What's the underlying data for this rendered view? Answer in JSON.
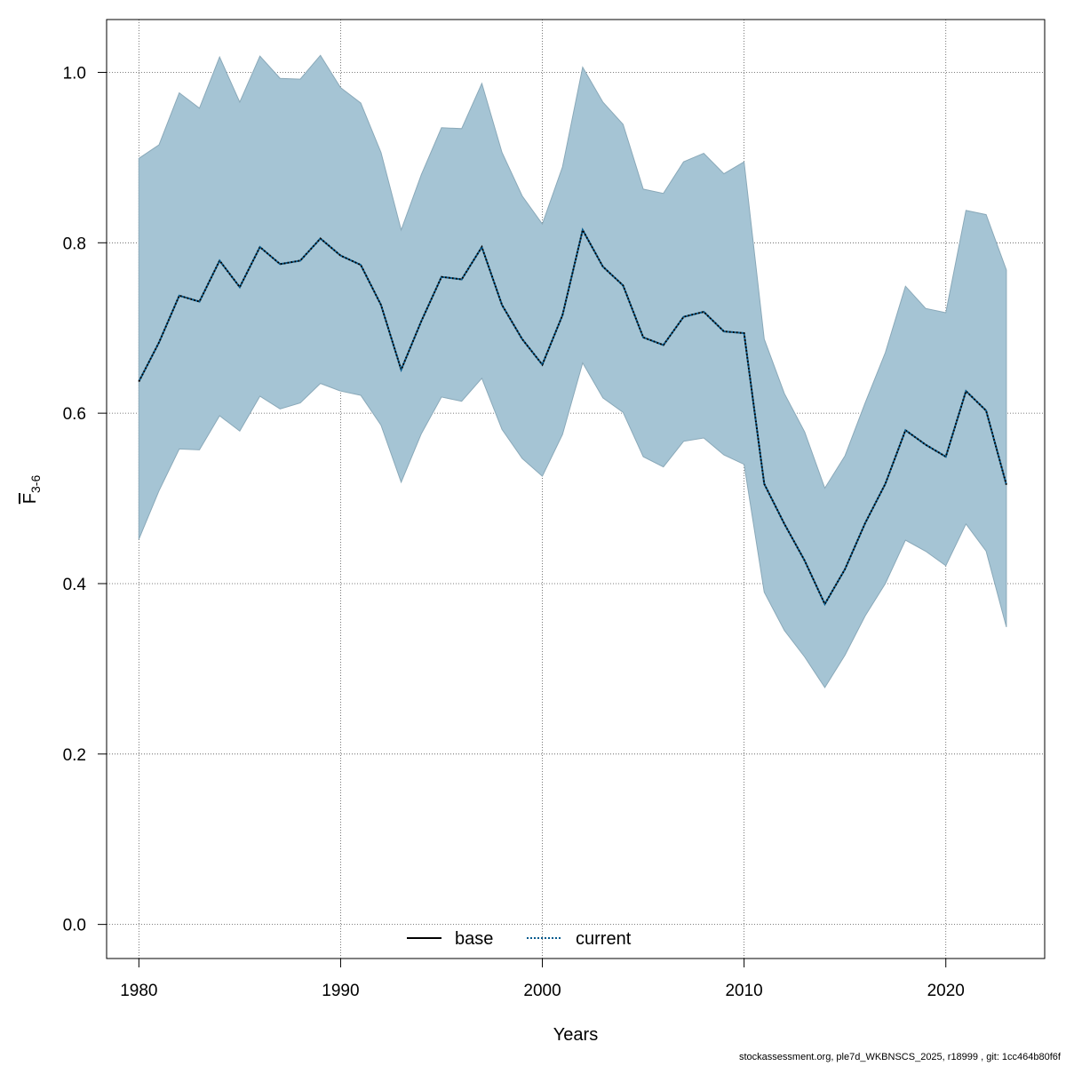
{
  "chart_data": {
    "type": "line",
    "xlabel": "Years",
    "ylabel": {
      "main": "F",
      "subscript": "3-6"
    },
    "xlim": [
      1978.4,
      2024.9
    ],
    "ylim": [
      -0.04,
      1.062
    ],
    "x_ticks": [
      1980,
      1990,
      2000,
      2010,
      2020
    ],
    "y_ticks": [
      0.0,
      0.2,
      0.4,
      0.6,
      0.8,
      1.0
    ],
    "y_tick_labels": [
      "0.0",
      "0.2",
      "0.4",
      "0.6",
      "0.8",
      "1.0"
    ],
    "grid": true,
    "legend": {
      "placement": "bottom-center",
      "entries": [
        {
          "name": "base",
          "color": "#000000",
          "style": "solid"
        },
        {
          "name": "current",
          "color": "#045a8d",
          "style": "dotted"
        }
      ]
    },
    "x": [
      1980,
      1981,
      1982,
      1983,
      1984,
      1985,
      1986,
      1987,
      1988,
      1989,
      1990,
      1991,
      1992,
      1993,
      1994,
      1995,
      1996,
      1997,
      1998,
      1999,
      2000,
      2001,
      2002,
      2003,
      2004,
      2005,
      2006,
      2007,
      2008,
      2009,
      2010,
      2011,
      2012,
      2013,
      2014,
      2015,
      2016,
      2017,
      2018,
      2019,
      2020,
      2021,
      2022,
      2023
    ],
    "series": [
      {
        "name": "current",
        "color": "#045a8d",
        "values": [
          0.637,
          0.683,
          0.738,
          0.731,
          0.779,
          0.748,
          0.795,
          0.775,
          0.779,
          0.805,
          0.785,
          0.774,
          0.727,
          0.651,
          0.708,
          0.76,
          0.757,
          0.795,
          0.727,
          0.687,
          0.657,
          0.715,
          0.815,
          0.772,
          0.75,
          0.689,
          0.68,
          0.713,
          0.719,
          0.696,
          0.694,
          0.517,
          0.47,
          0.427,
          0.376,
          0.417,
          0.471,
          0.517,
          0.58,
          0.563,
          0.549,
          0.626,
          0.603,
          0.516
        ],
        "lower": [
          0.452,
          0.509,
          0.558,
          0.557,
          0.597,
          0.579,
          0.62,
          0.605,
          0.612,
          0.635,
          0.626,
          0.621,
          0.586,
          0.519,
          0.576,
          0.619,
          0.614,
          0.641,
          0.581,
          0.547,
          0.526,
          0.575,
          0.659,
          0.618,
          0.601,
          0.549,
          0.537,
          0.567,
          0.571,
          0.551,
          0.54,
          0.39,
          0.345,
          0.314,
          0.278,
          0.316,
          0.362,
          0.4,
          0.451,
          0.438,
          0.421,
          0.47,
          0.438,
          0.349
        ],
        "upper": [
          0.899,
          0.915,
          0.976,
          0.958,
          1.018,
          0.965,
          1.019,
          0.993,
          0.992,
          1.02,
          0.982,
          0.964,
          0.906,
          0.815,
          0.88,
          0.935,
          0.934,
          0.987,
          0.906,
          0.855,
          0.822,
          0.889,
          1.006,
          0.965,
          0.939,
          0.863,
          0.858,
          0.895,
          0.905,
          0.881,
          0.895,
          0.687,
          0.623,
          0.578,
          0.512,
          0.55,
          0.612,
          0.671,
          0.749,
          0.723,
          0.718,
          0.838,
          0.833,
          0.768
        ]
      }
    ],
    "colors": {
      "band_fill": "#a5c4d4",
      "band_stroke": "#8aa9b9",
      "current_line": "#045a8d",
      "base_line": "#000000",
      "grid": "#555555"
    }
  },
  "footer": "stockassessment.org, ple7d_WKBNSCS_2025, r18999 , git: 1cc464b80f6f"
}
